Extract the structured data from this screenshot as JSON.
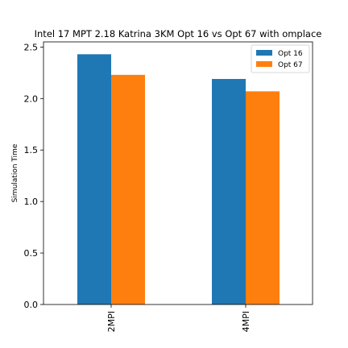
{
  "chart_data": {
    "type": "bar",
    "title": "Intel 17 MPT 2.18 Katrina 3KM Opt 16 vs Opt 67 with omplace",
    "xlabel": "",
    "ylabel": "Simulation Time",
    "categories": [
      "2MPI",
      "4MPI"
    ],
    "series": [
      {
        "name": "Opt 16",
        "color": "#1f77b4",
        "values": [
          2.43,
          2.19
        ]
      },
      {
        "name": "Opt 67",
        "color": "#ff7f0e",
        "values": [
          2.23,
          2.07
        ]
      }
    ],
    "ylim": [
      0,
      2.55
    ],
    "yticks": [
      0.0,
      0.5,
      1.0,
      1.5,
      2.0,
      2.5
    ],
    "ytick_labels": [
      "0.0",
      "0.5",
      "1.0",
      "1.5",
      "2.0",
      "2.5"
    ],
    "legend_position": "top-right",
    "grid": false
  }
}
